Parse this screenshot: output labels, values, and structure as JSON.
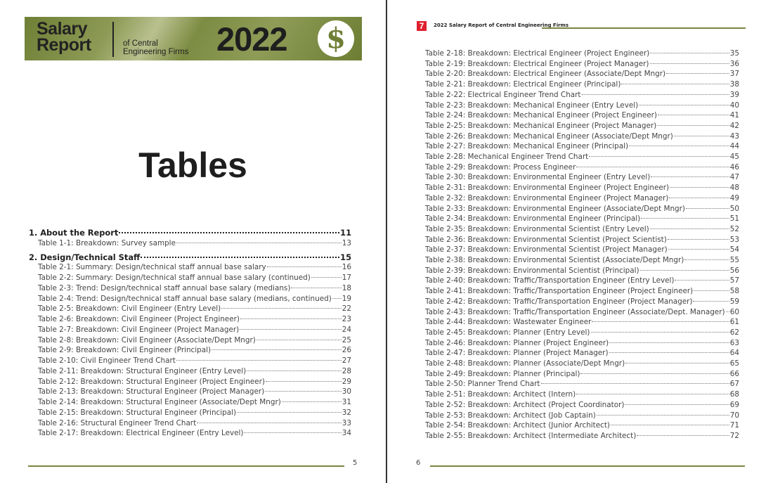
{
  "left_page": {
    "banner": {
      "title_line1": "Salary",
      "title_line2": "Report",
      "subtitle_line1": "of Central",
      "subtitle_line2": "Engineering Firms",
      "year": "2022",
      "icon": "dollar-icon"
    },
    "heading": "Tables",
    "entries": [
      {
        "type": "section",
        "label": "1. About the Report",
        "page": "11"
      },
      {
        "type": "item",
        "label": "Table 1-1: Breakdown: Survey sample",
        "page": "13"
      },
      {
        "type": "section",
        "label": "2. Design/Technical Staff",
        "page": "15"
      },
      {
        "type": "item",
        "label": "Table 2-1: Summary: Design/technical staff annual base salary",
        "page": "16"
      },
      {
        "type": "item",
        "label": "Table 2-2: Summary: Design/technical staff annual base salary (continued)",
        "page": "17"
      },
      {
        "type": "item",
        "label": "Table 2-3: Trend: Design/technical staff annual base salary (medians)",
        "page": "18"
      },
      {
        "type": "item",
        "label": "Table 2-4: Trend: Design/technical staff annual base salary (medians, continued)",
        "page": "19"
      },
      {
        "type": "item",
        "label": "Table 2-5: Breakdown: Civil Engineer (Entry Level)",
        "page": "22"
      },
      {
        "type": "item",
        "label": "Table 2-6: Breakdown: Civil Engineer (Project Engineer)",
        "page": "23"
      },
      {
        "type": "item",
        "label": "Table 2-7: Breakdown: Civil Engineer (Project Manager)",
        "page": "24"
      },
      {
        "type": "item",
        "label": "Table 2-8: Breakdown: Civil Engineer (Associate/Dept Mngr)",
        "page": "25"
      },
      {
        "type": "item",
        "label": "Table 2-9: Breakdown: Civil Engineer (Principal)",
        "page": "26"
      },
      {
        "type": "item",
        "label": "Table 2-10: Civil Engineer Trend Chart",
        "page": "27"
      },
      {
        "type": "item",
        "label": "Table 2-11: Breakdown: Structural Engineer (Entry Level)",
        "page": "28"
      },
      {
        "type": "item",
        "label": "Table 2-12: Breakdown: Structural Engineer (Project Engineer)",
        "page": "29"
      },
      {
        "type": "item",
        "label": "Table 2-13: Breakdown: Structural Engineer (Project Manager)",
        "page": "30"
      },
      {
        "type": "item",
        "label": "Table 2-14: Breakdown: Structural Engineer (Associate/Dept Mngr)",
        "page": "31"
      },
      {
        "type": "item",
        "label": "Table 2-15: Breakdown: Structural Engineer (Principal)",
        "page": "32"
      },
      {
        "type": "item",
        "label": "Table 2-16: Structural Engineer Trend Chart",
        "page": "33"
      },
      {
        "type": "item",
        "label": "Table 2-17: Breakdown: Electrical Engineer (Entry Level)",
        "page": "34"
      }
    ],
    "page_number": "5"
  },
  "right_page": {
    "logo_icon": "company-logo",
    "running_head": "2022 Salary Report of Central Engineering Firms",
    "entries": [
      {
        "label": "Table 2-18: Breakdown: Electrical Engineer (Project Engineer)",
        "page": "35"
      },
      {
        "label": "Table 2-19: Breakdown: Electrical Engineer (Project Manager)",
        "page": "36"
      },
      {
        "label": "Table 2-20: Breakdown: Electrical Engineer (Associate/Dept Mngr)",
        "page": "37"
      },
      {
        "label": "Table 2-21: Breakdown: Electrical Engineer (Principal)",
        "page": "38"
      },
      {
        "label": "Table 2-22: Electrical Engineer Trend Chart",
        "page": "39"
      },
      {
        "label": "Table 2-23: Breakdown: Mechanical Engineer (Entry Level)",
        "page": "40"
      },
      {
        "label": "Table 2-24: Breakdown: Mechanical Engineer (Project Engineer)",
        "page": "41"
      },
      {
        "label": "Table 2-25: Breakdown: Mechanical Engineer (Project Manager)",
        "page": "42"
      },
      {
        "label": "Table 2-26: Breakdown: Mechanical Engineer (Associate/Dept Mngr)",
        "page": "43"
      },
      {
        "label": "Table 2-27: Breakdown: Mechanical Engineer (Principal)",
        "page": "44"
      },
      {
        "label": "Table 2-28: Mechanical Engineer Trend Chart",
        "page": "45"
      },
      {
        "label": "Table 2-29: Breakdown: Process Engineer",
        "page": "46"
      },
      {
        "label": "Table 2-30: Breakdown: Environmental Engineer (Entry Level)",
        "page": "47"
      },
      {
        "label": "Table 2-31: Breakdown: Environmental Engineer (Project Engineer)",
        "page": "48"
      },
      {
        "label": "Table 2-32: Breakdown: Environmental Engineer (Project Manager)",
        "page": "49"
      },
      {
        "label": "Table 2-33: Breakdown: Environmental Engineer (Associate/Dept Mngr)",
        "page": "50"
      },
      {
        "label": "Table 2-34: Breakdown: Environmental Engineer (Principal)",
        "page": "51"
      },
      {
        "label": "Table 2-35: Breakdown: Environmental Scientist (Entry Level)",
        "page": "52"
      },
      {
        "label": "Table 2-36: Breakdown: Environmental Scientist (Project Scientist)",
        "page": "53"
      },
      {
        "label": "Table 2-37: Breakdown: Environmental Scientist (Project Manager)",
        "page": "54"
      },
      {
        "label": "Table 2-38: Breakdown: Environmental Scientist (Associate/Dept Mngr)",
        "page": "55"
      },
      {
        "label": "Table 2-39: Breakdown: Environmental Scientist (Principal)",
        "page": "56"
      },
      {
        "label": "Table 2-40: Breakdown: Traffic/Transportation Engineer (Entry Level)",
        "page": "57"
      },
      {
        "label": "Table 2-41: Breakdown: Traffic/Transportation Engineer (Project Engineer)",
        "page": "58"
      },
      {
        "label": "Table 2-42: Breakdown: Traffic/Transportation Engineer (Project Manager)",
        "page": "59"
      },
      {
        "label": "Table 2-43: Breakdown: Traffic/Transportation Engineer (Associate/Dept. Manager)",
        "page": "60"
      },
      {
        "label": "Table 2-44: Breakdown: Wastewater Engineer",
        "page": "61"
      },
      {
        "label": "Table 2-45: Breakdown: Planner (Entry Level)",
        "page": "62"
      },
      {
        "label": "Table 2-46: Breakdown: Planner (Project Engineer)",
        "page": "63"
      },
      {
        "label": "Table 2-47: Breakdown: Planner (Project Manager)",
        "page": "64"
      },
      {
        "label": "Table 2-48: Breakdown: Planner (Associate/Dept Mngr)",
        "page": "65"
      },
      {
        "label": "Table 2-49: Breakdown: Planner (Principal)",
        "page": "66"
      },
      {
        "label": "Table 2-50: Planner Trend Chart",
        "page": "67"
      },
      {
        "label": "Table 2-51: Breakdown: Architect (Intern)",
        "page": "68"
      },
      {
        "label": "Table 2-52: Breakdown: Architect (Project Coordinator)",
        "page": "69"
      },
      {
        "label": "Table 2-53: Breakdown: Architect (Job Captain)",
        "page": "70"
      },
      {
        "label": "Table 2-54: Breakdown: Architect (Junior Architect)",
        "page": "71"
      },
      {
        "label": "Table 2-55: Breakdown: Architect (Intermediate Architect)",
        "page": "72"
      }
    ],
    "page_number": "6"
  },
  "colors": {
    "accent_olive": "#7d8440",
    "logo_red": "#e0202e"
  }
}
